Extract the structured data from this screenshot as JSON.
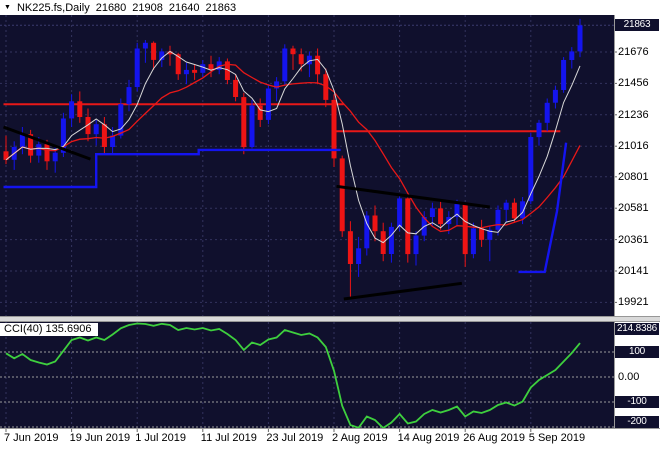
{
  "window": {
    "title_icon": "▼",
    "symbol": "NK225.fs,Daily",
    "open": "21680",
    "high": "21908",
    "low": "21640",
    "close": "21863"
  },
  "colors": {
    "plot_bg": "#10102d",
    "badge_bg": "#10102d",
    "grid": "#33335e",
    "bull": "#1414ee",
    "bear": "#ee1414",
    "ma_fast": "#d8d8d8",
    "ma_slow": "#e81818",
    "res_line": "#e81818",
    "step_line": "#1414f0",
    "trend_line": "#000000",
    "cci_line": "#3ecf3e",
    "level_line": "#9a9a9a"
  },
  "price_axis": {
    "labels": [
      "21676",
      "21456",
      "21236",
      "21016",
      "20801",
      "20581",
      "20361",
      "20141",
      "19921"
    ],
    "current": "21863"
  },
  "time_axis": {
    "labels": [
      "7 Jun 2019",
      "19 Jun 2019",
      "1 Jul 2019",
      "11 Jul 2019",
      "23 Jul 2019",
      "2 Aug 2019",
      "14 Aug 2019",
      "26 Aug 2019",
      "5 Sep 2019"
    ]
  },
  "cci": {
    "label": "CCI(40) 135.6906",
    "scale_max": "214.8386",
    "levels": [
      {
        "text": "100",
        "value": 100,
        "chip": true
      },
      {
        "text": "0.00",
        "value": 0,
        "chip": false
      },
      {
        "text": "-100",
        "value": -100,
        "chip": true
      },
      {
        "text": "-200",
        "value": -200,
        "chip": true
      }
    ]
  },
  "chart_data": {
    "type": "candlestick",
    "title": "NK225.fs,Daily",
    "ylim": [
      19826,
      21935
    ],
    "cci_ylim": [
      -204,
      220
    ],
    "tick_indices": [
      0,
      8,
      16,
      24,
      32,
      40,
      48,
      56,
      64
    ],
    "candles": [
      [
        20980,
        21090,
        20890,
        20920
      ],
      [
        20920,
        21050,
        20850,
        21010
      ],
      [
        21010,
        21150,
        20960,
        21100
      ],
      [
        21100,
        21130,
        20900,
        20950
      ],
      [
        20950,
        21080,
        20900,
        21030
      ],
      [
        21030,
        21060,
        20850,
        20910
      ],
      [
        20910,
        21010,
        20830,
        20970
      ],
      [
        20970,
        21250,
        20940,
        21210
      ],
      [
        21210,
        21380,
        21150,
        21330
      ],
      [
        21330,
        21400,
        21180,
        21220
      ],
      [
        21220,
        21280,
        21050,
        21100
      ],
      [
        21100,
        21200,
        21020,
        21170
      ],
      [
        21170,
        21220,
        20960,
        21010
      ],
      [
        21010,
        21150,
        20960,
        21090
      ],
      [
        21090,
        21350,
        21070,
        21310
      ],
      [
        21310,
        21480,
        21260,
        21430
      ],
      [
        21430,
        21740,
        21400,
        21700
      ],
      [
        21700,
        21760,
        21600,
        21740
      ],
      [
        21740,
        21750,
        21550,
        21620
      ],
      [
        21620,
        21700,
        21570,
        21680
      ],
      [
        21680,
        21720,
        21580,
        21660
      ],
      [
        21660,
        21670,
        21480,
        21520
      ],
      [
        21520,
        21600,
        21450,
        21550
      ],
      [
        21550,
        21590,
        21480,
        21530
      ],
      [
        21530,
        21620,
        21500,
        21590
      ],
      [
        21590,
        21650,
        21500,
        21550
      ],
      [
        21550,
        21640,
        21520,
        21610
      ],
      [
        21610,
        21630,
        21450,
        21480
      ],
      [
        21480,
        21520,
        21330,
        21360
      ],
      [
        21360,
        21390,
        20960,
        21010
      ],
      [
        21010,
        21340,
        21000,
        21300
      ],
      [
        21300,
        21350,
        21150,
        21200
      ],
      [
        21200,
        21450,
        21170,
        21420
      ],
      [
        21420,
        21500,
        21330,
        21470
      ],
      [
        21470,
        21730,
        21440,
        21700
      ],
      [
        21700,
        21720,
        21550,
        21660
      ],
      [
        21660,
        21700,
        21540,
        21590
      ],
      [
        21590,
        21680,
        21500,
        21650
      ],
      [
        21650,
        21700,
        21450,
        21520
      ],
      [
        21520,
        21560,
        21290,
        21340
      ],
      [
        21340,
        21380,
        20870,
        20930
      ],
      [
        20930,
        20950,
        20380,
        20420
      ],
      [
        20420,
        20490,
        19960,
        20190
      ],
      [
        20190,
        20380,
        20100,
        20300
      ],
      [
        20300,
        20560,
        20250,
        20530
      ],
      [
        20530,
        20600,
        20350,
        20420
      ],
      [
        20420,
        20480,
        20210,
        20260
      ],
      [
        20260,
        20480,
        20200,
        20450
      ],
      [
        20450,
        20680,
        20420,
        20650
      ],
      [
        20650,
        20670,
        20200,
        20260
      ],
      [
        20260,
        20420,
        20180,
        20390
      ],
      [
        20390,
        20560,
        20350,
        20520
      ],
      [
        20520,
        20620,
        20460,
        20580
      ],
      [
        20580,
        20640,
        20430,
        20470
      ],
      [
        20470,
        20560,
        20400,
        20520
      ],
      [
        20520,
        20640,
        20460,
        20610
      ],
      [
        20610,
        20620,
        20170,
        20260
      ],
      [
        20260,
        20480,
        20230,
        20440
      ],
      [
        20440,
        20500,
        20310,
        20360
      ],
      [
        20360,
        20460,
        20210,
        20430
      ],
      [
        20430,
        20600,
        20390,
        20570
      ],
      [
        20570,
        20640,
        20480,
        20620
      ],
      [
        20620,
        20650,
        20480,
        20510
      ],
      [
        20510,
        20660,
        20470,
        20630
      ],
      [
        20630,
        21110,
        20610,
        21080
      ],
      [
        21080,
        21200,
        21020,
        21180
      ],
      [
        21180,
        21350,
        21120,
        21320
      ],
      [
        21320,
        21440,
        21280,
        21410
      ],
      [
        21410,
        21640,
        21390,
        21620
      ],
      [
        21620,
        21710,
        21560,
        21680
      ],
      [
        21680,
        21908,
        21640,
        21863
      ]
    ],
    "cci_values": [
      95,
      75,
      92,
      68,
      58,
      50,
      62,
      105,
      148,
      158,
      146,
      158,
      148,
      170,
      195,
      208,
      214,
      212,
      205,
      213,
      208,
      188,
      196,
      190,
      196,
      186,
      192,
      172,
      148,
      108,
      138,
      128,
      150,
      158,
      188,
      178,
      168,
      174,
      158,
      120,
      25,
      -115,
      -192,
      -203,
      -158,
      -172,
      -204,
      -182,
      -148,
      -186,
      -178,
      -148,
      -132,
      -142,
      -132,
      -118,
      -158,
      -138,
      -144,
      -132,
      -112,
      -102,
      -114,
      -98,
      -42,
      -12,
      8,
      28,
      62,
      96,
      135.69
    ],
    "cci_levels": [
      100,
      0,
      -100,
      -200
    ],
    "overlays": {
      "resistance_lines": [
        {
          "price": 21310,
          "from": -0.3,
          "to": 41.2
        },
        {
          "price": 21120,
          "from": 40,
          "to": 67.6
        }
      ],
      "support_polylines": [
        [
          {
            "i": -0.3,
            "p": 20730
          },
          {
            "i": 11,
            "p": 20730
          },
          {
            "i": 11,
            "p": 20960
          },
          {
            "i": 23.5,
            "p": 20960
          },
          {
            "i": 23.5,
            "p": 20990
          },
          {
            "i": 40.8,
            "p": 20990
          }
        ],
        [
          {
            "i": 62.5,
            "p": 20135
          },
          {
            "i": 65.7,
            "p": 20135
          },
          {
            "i": 67.2,
            "p": 20560
          },
          {
            "i": 68.3,
            "p": 21040
          }
        ]
      ],
      "trend_lines": [
        {
          "i1": -0.3,
          "p1": 21150,
          "i2": 10.3,
          "p2": 20925
        },
        {
          "i1": 40.3,
          "p1": 20735,
          "i2": 59,
          "p2": 20590
        },
        {
          "i1": 41.2,
          "p1": 19945,
          "i2": 55.6,
          "p2": 20055
        }
      ]
    }
  }
}
